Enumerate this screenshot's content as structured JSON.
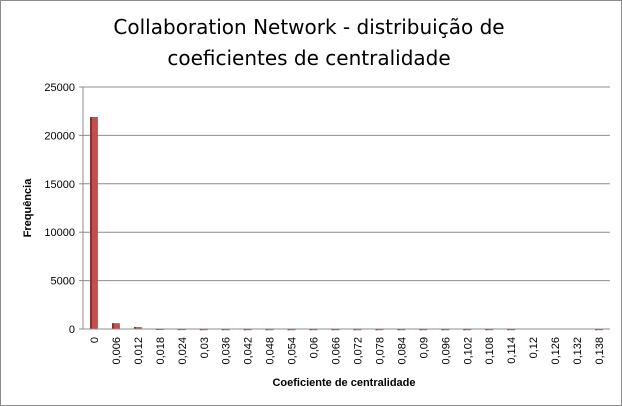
{
  "chart_data": {
    "type": "bar",
    "title_line1": "Collaboration Network - distribuição de",
    "title_line2": "coeficientes de centralidade",
    "xlabel": "Coeficiente de centralidade",
    "ylabel": "Frequência",
    "ylim": [
      0,
      25000
    ],
    "yticks": [
      0,
      5000,
      10000,
      15000,
      20000,
      25000
    ],
    "ytick_labels": [
      "0",
      "5000",
      "10000",
      "15000",
      "20000",
      "25000"
    ],
    "grid": true,
    "legend": "none",
    "bar_color": "#c0504d",
    "bar_shadow_color": "#8c2f2d",
    "grid_color": "#8c8c8c",
    "categories": [
      "0",
      "0,006",
      "0,012",
      "0,018",
      "0,024",
      "0,03",
      "0,036",
      "0,042",
      "0,048",
      "0,054",
      "0,06",
      "0,066",
      "0,072",
      "0,078",
      "0,084",
      "0,09",
      "0,096",
      "0,102",
      "0,108",
      "0,114",
      "0,12",
      "0,126",
      "0,132",
      "0,138"
    ],
    "values": [
      21900,
      600,
      200,
      50,
      40,
      30,
      30,
      30,
      30,
      30,
      30,
      30,
      30,
      30,
      30,
      30,
      30,
      30,
      30,
      30,
      0,
      0,
      0,
      30
    ]
  }
}
